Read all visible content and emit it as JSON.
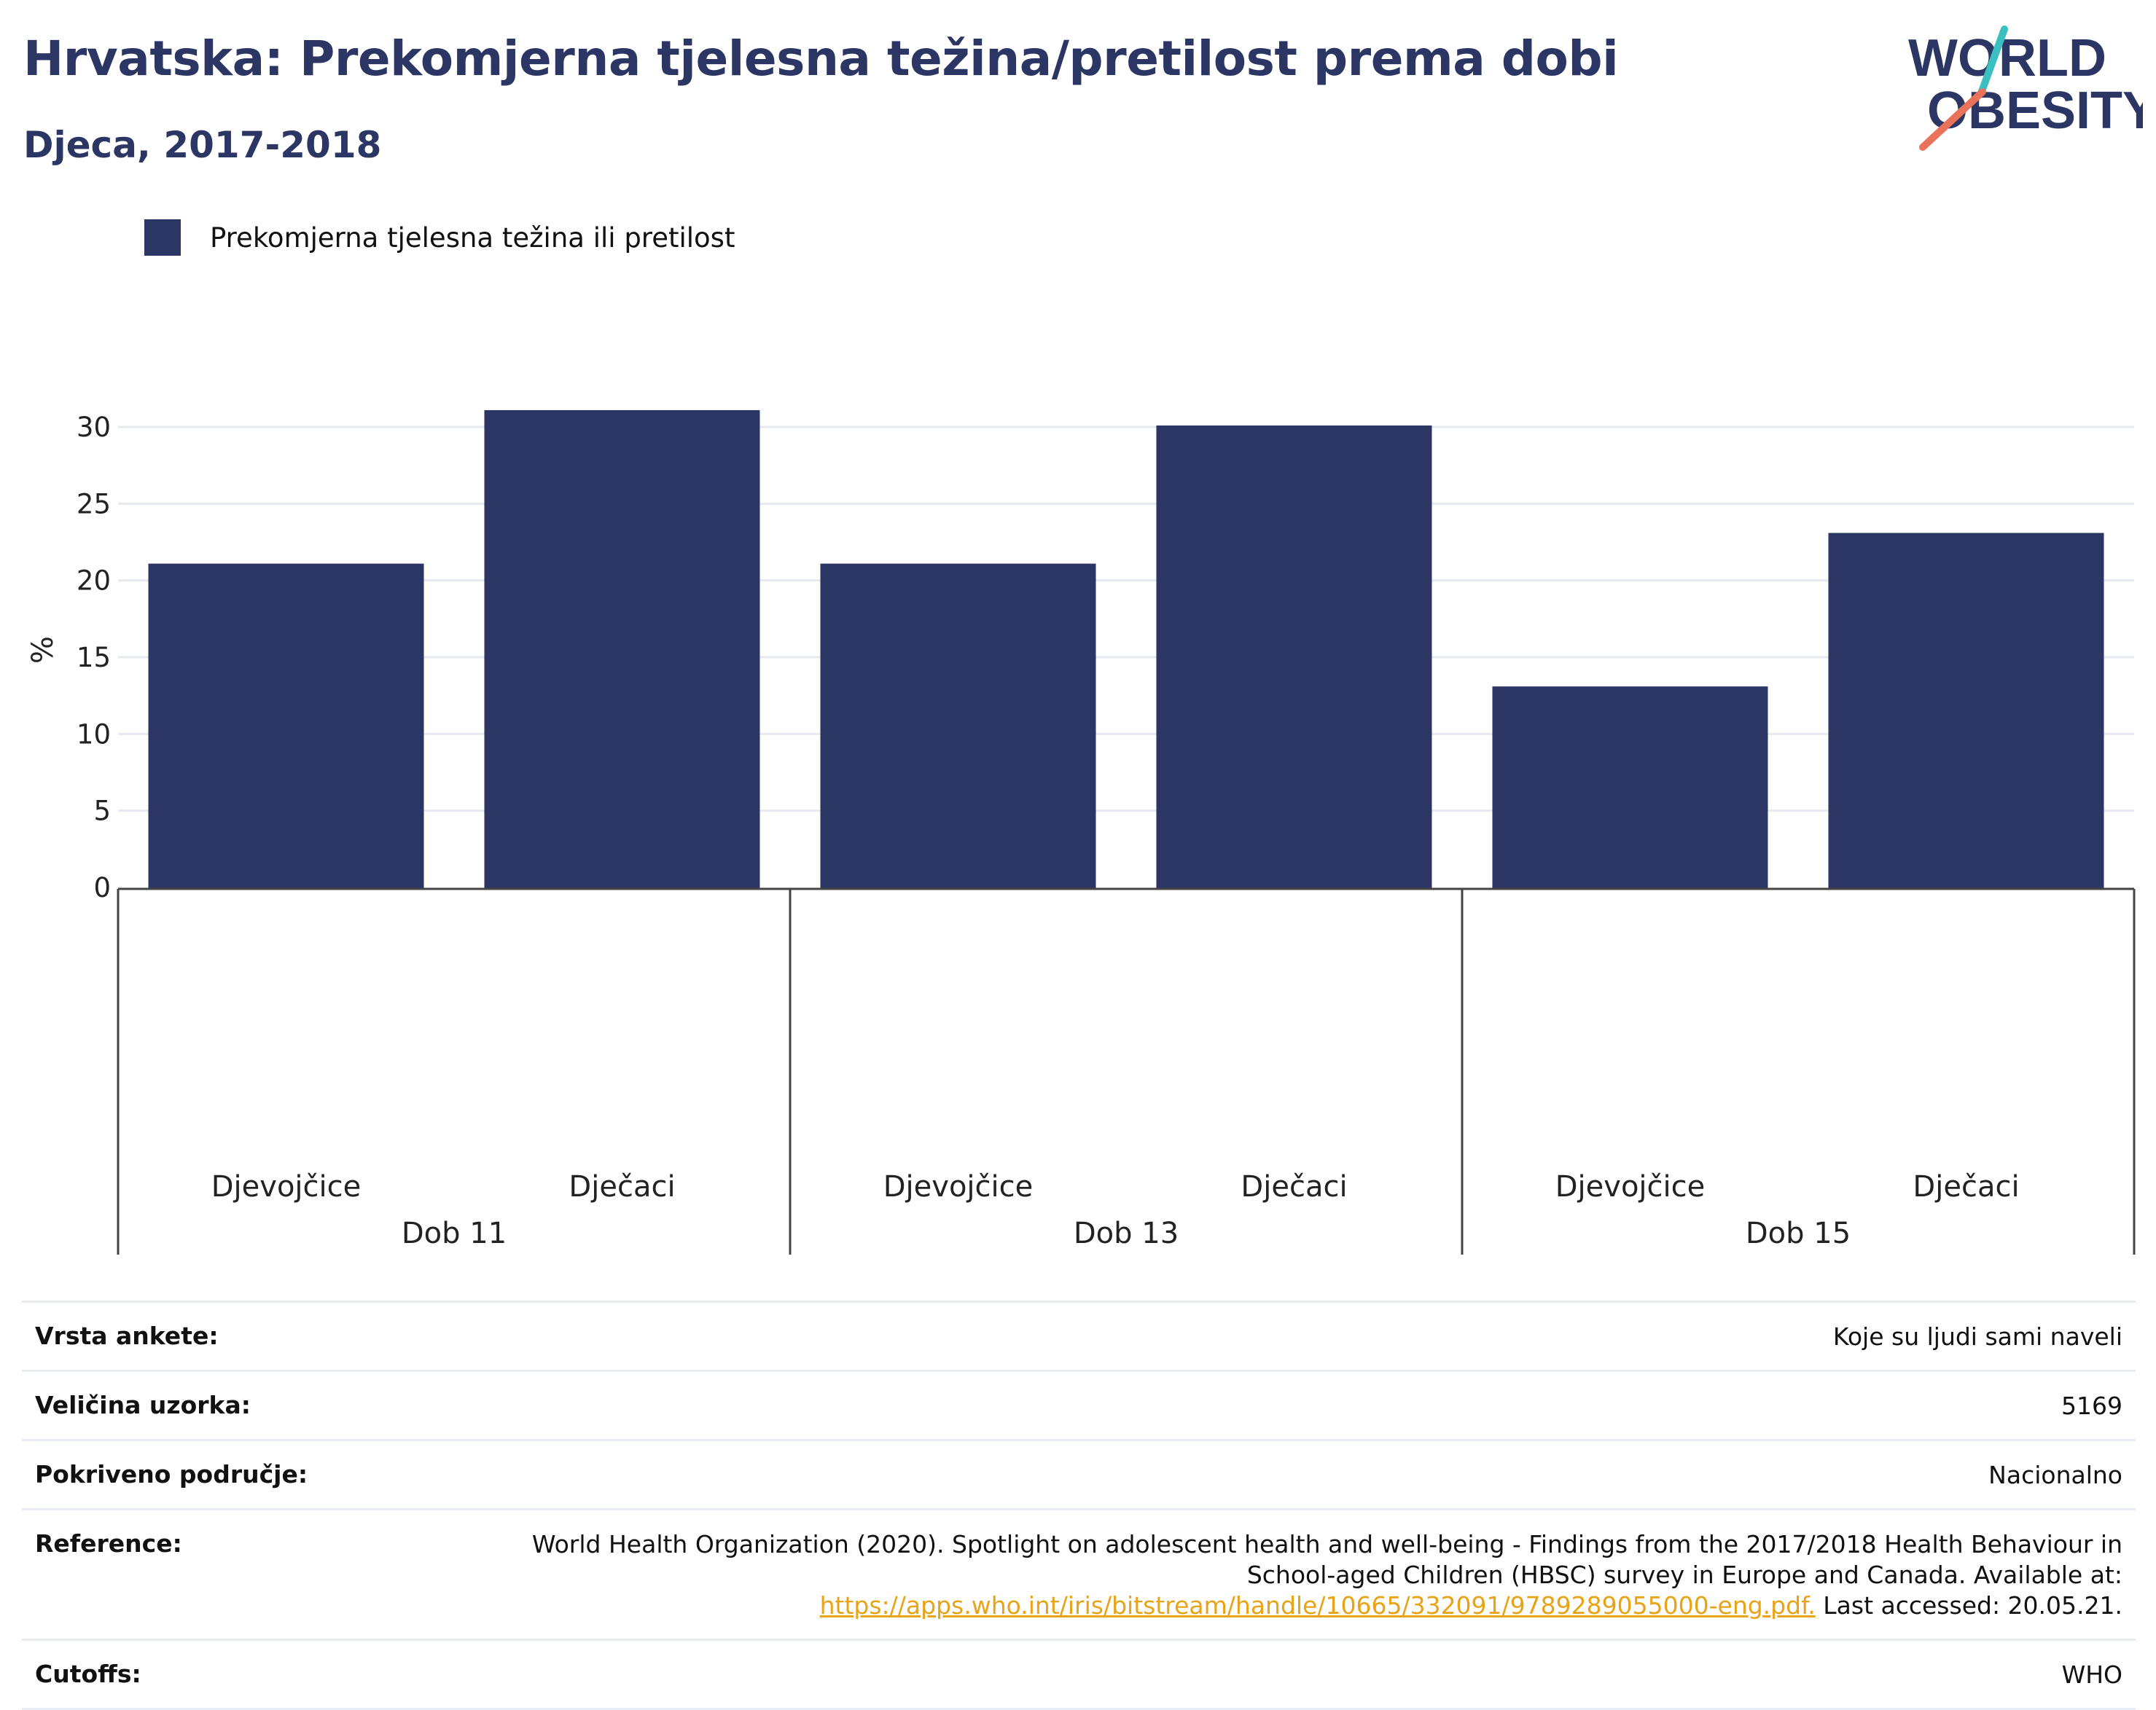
{
  "header": {
    "title": "Hrvatska: Prekomjerna tjelesna težina/pretilost prema dobi",
    "subtitle": "Djeca, 2017-2018"
  },
  "logo": {
    "line1": "WORLD",
    "line2": "OBESITY",
    "text_color": "#2b3664",
    "accent_colors": [
      "#3bbfbf",
      "#e8735a"
    ]
  },
  "legend": {
    "label": "Prekomjerna tjelesna težina ili pretilost",
    "color": "#2b3664"
  },
  "chart_data": {
    "type": "bar",
    "title": "",
    "ylabel": "%",
    "xlabel": "",
    "ylim": [
      0,
      32
    ],
    "yticks": [
      0,
      5,
      10,
      15,
      20,
      25,
      30
    ],
    "grid": true,
    "legend_position": "top-left",
    "bar_color": "#2b3664",
    "groups": [
      "Dob 11",
      "Dob 13",
      "Dob 15"
    ],
    "categories": [
      "Djevojčice",
      "Dječaci",
      "Djevojčice",
      "Dječaci",
      "Djevojčice",
      "Dječaci"
    ],
    "series": [
      {
        "name": "Prekomjerna tjelesna težina ili pretilost",
        "values": [
          21,
          31,
          21,
          30,
          13,
          23
        ]
      }
    ]
  },
  "info": {
    "rows": [
      {
        "key": "Vrsta ankete:",
        "value": "Koje su ljudi sami naveli"
      },
      {
        "key": "Veličina uzorka:",
        "value": "5169"
      },
      {
        "key": "Pokriveno područje:",
        "value": "Nacionalno"
      },
      {
        "key": "Reference:",
        "value": "World Health Organization (2020). Spotlight on adolescent health and well-being - Findings from the 2017/2018 Health Behaviour in School-aged Children (HBSC) survey in Europe and Canada. Available at:",
        "link": "https://apps.who.int/iris/bitstream/handle/10665/332091/9789289055000-eng.pdf.",
        "suffix": " Last accessed: 20.05.21."
      },
      {
        "key": "Cutoffs:",
        "value": "WHO"
      }
    ]
  }
}
